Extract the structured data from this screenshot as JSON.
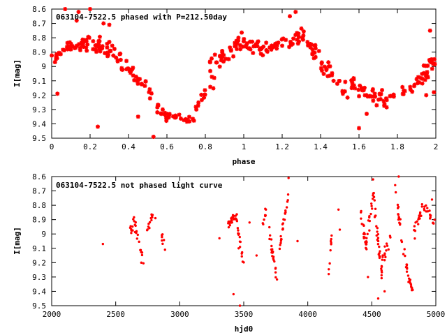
{
  "colors": {
    "points": "#ff0000",
    "axes": "#000000",
    "background": "#ffffff"
  },
  "chart_data": [
    {
      "type": "scatter",
      "title": "063104-7522.5 phased with P=212.50day",
      "xlabel": "phase",
      "ylabel": "I[mag]",
      "xlim": [
        0,
        2
      ],
      "ylim": [
        8.6,
        9.5
      ],
      "y_inverted": true,
      "grid": false,
      "marker": "asterisk",
      "x_ticks": [
        "0",
        "0.2",
        "0.4",
        "0.6",
        "0.8",
        "1",
        "1.2",
        "1.4",
        "1.6",
        "1.8",
        "2"
      ],
      "y_ticks": [
        "8.6",
        "8.7",
        "8.8",
        "8.9",
        "9",
        "9.1",
        "9.2",
        "9.3",
        "9.4",
        "9.5"
      ],
      "segments": [
        {
          "x": [
            0.0,
            0.1
          ],
          "y": [
            8.95,
            8.86
          ],
          "spread": 0.06,
          "n": 22
        },
        {
          "x": [
            0.1,
            0.2
          ],
          "y": [
            8.86,
            8.82
          ],
          "spread": 0.08,
          "n": 22
        },
        {
          "x": [
            0.2,
            0.33
          ],
          "y": [
            8.82,
            8.93
          ],
          "spread": 0.09,
          "n": 30
        },
        {
          "x": [
            0.33,
            0.45
          ],
          "y": [
            8.93,
            9.08
          ],
          "spread": 0.07,
          "n": 24
        },
        {
          "x": [
            0.45,
            0.6
          ],
          "y": [
            9.08,
            9.35
          ],
          "spread": 0.06,
          "n": 22
        },
        {
          "x": [
            0.6,
            0.75
          ],
          "y": [
            9.35,
            9.38
          ],
          "spread": 0.03,
          "n": 18
        },
        {
          "x": [
            0.75,
            0.85
          ],
          "y": [
            9.28,
            9.08
          ],
          "spread": 0.06,
          "n": 14
        },
        {
          "x": [
            0.82,
            1.0
          ],
          "y": [
            9.0,
            8.82
          ],
          "spread": 0.08,
          "n": 36
        },
        {
          "x": [
            1.0,
            1.1
          ],
          "y": [
            8.82,
            8.88
          ],
          "spread": 0.06,
          "n": 24
        },
        {
          "x": [
            1.1,
            1.3
          ],
          "y": [
            8.9,
            8.78
          ],
          "spread": 0.07,
          "n": 34
        },
        {
          "x": [
            1.3,
            1.4
          ],
          "y": [
            8.8,
            8.95
          ],
          "spread": 0.07,
          "n": 20
        },
        {
          "x": [
            1.4,
            1.55
          ],
          "y": [
            8.98,
            9.18
          ],
          "spread": 0.07,
          "n": 24
        },
        {
          "x": [
            1.55,
            1.75
          ],
          "y": [
            9.12,
            9.25
          ],
          "spread": 0.07,
          "n": 40
        },
        {
          "x": [
            1.75,
            1.9
          ],
          "y": [
            9.2,
            9.15
          ],
          "spread": 0.04,
          "n": 14
        },
        {
          "x": [
            1.9,
            2.0
          ],
          "y": [
            9.12,
            8.95
          ],
          "spread": 0.08,
          "n": 28
        }
      ],
      "points": [
        {
          "x": 0.07,
          "y": 8.6
        },
        {
          "x": 0.14,
          "y": 8.62
        },
        {
          "x": 0.24,
          "y": 9.42
        },
        {
          "x": 0.2,
          "y": 8.6
        },
        {
          "x": 0.53,
          "y": 9.49
        },
        {
          "x": 0.13,
          "y": 8.68
        },
        {
          "x": 0.27,
          "y": 8.7
        },
        {
          "x": 0.3,
          "y": 8.71
        },
        {
          "x": 0.03,
          "y": 9.19
        },
        {
          "x": 1.27,
          "y": 8.62
        },
        {
          "x": 1.24,
          "y": 8.65
        },
        {
          "x": 1.6,
          "y": 9.43
        },
        {
          "x": 1.64,
          "y": 9.33
        },
        {
          "x": 1.97,
          "y": 8.75
        },
        {
          "x": 1.99,
          "y": 9.18
        },
        {
          "x": 1.95,
          "y": 9.2
        },
        {
          "x": 0.45,
          "y": 9.35
        },
        {
          "x": 0.55,
          "y": 9.32
        }
      ]
    },
    {
      "type": "scatter",
      "title": "063104-7522.5 not phased light curve",
      "xlabel": "hjd0",
      "ylabel": "I[mag]",
      "xlim": [
        2000,
        5000
      ],
      "ylim": [
        8.6,
        9.5
      ],
      "y_inverted": true,
      "grid": false,
      "marker": "dot",
      "x_ticks": [
        "2000",
        "2500",
        "3000",
        "3500",
        "4000",
        "4500",
        "5000"
      ],
      "y_ticks": [
        "8.6",
        "8.7",
        "8.8",
        "8.9",
        "9",
        "9.1",
        "9.2",
        "9.3",
        "9.4",
        "9.5"
      ],
      "segments": [
        {
          "x": [
            2610,
            2650
          ],
          "y": [
            8.98,
            8.9
          ],
          "spread": 0.05,
          "n": 10
        },
        {
          "x": [
            2650,
            2720
          ],
          "y": [
            8.95,
            9.2
          ],
          "spread": 0.06,
          "n": 16
        },
        {
          "x": [
            2730,
            2790
          ],
          "y": [
            8.98,
            8.88
          ],
          "spread": 0.05,
          "n": 12
        },
        {
          "x": [
            2860,
            2890
          ],
          "y": [
            9.02,
            9.12
          ],
          "spread": 0.04,
          "n": 8
        },
        {
          "x": [
            3370,
            3450
          ],
          "y": [
            8.93,
            8.88
          ],
          "spread": 0.04,
          "n": 30
        },
        {
          "x": [
            3450,
            3500
          ],
          "y": [
            8.95,
            9.2
          ],
          "spread": 0.06,
          "n": 14
        },
        {
          "x": [
            3640,
            3680
          ],
          "y": [
            8.95,
            8.82
          ],
          "spread": 0.04,
          "n": 8
        },
        {
          "x": [
            3700,
            3760
          ],
          "y": [
            9.0,
            9.3
          ],
          "spread": 0.06,
          "n": 22
        },
        {
          "x": [
            3780,
            3850
          ],
          "y": [
            9.1,
            8.72
          ],
          "spread": 0.05,
          "n": 22
        },
        {
          "x": [
            4160,
            4190
          ],
          "y": [
            9.3,
            9.0
          ],
          "spread": 0.06,
          "n": 8
        },
        {
          "x": [
            4410,
            4450
          ],
          "y": [
            8.85,
            9.05
          ],
          "spread": 0.06,
          "n": 14
        },
        {
          "x": [
            4450,
            4520
          ],
          "y": [
            9.1,
            8.7
          ],
          "spread": 0.07,
          "n": 22
        },
        {
          "x": [
            4520,
            4580
          ],
          "y": [
            8.8,
            9.3
          ],
          "spread": 0.08,
          "n": 28
        },
        {
          "x": [
            4580,
            4650
          ],
          "y": [
            9.2,
            9.0
          ],
          "spread": 0.07,
          "n": 14
        },
        {
          "x": [
            4680,
            4730
          ],
          "y": [
            8.65,
            9.0
          ],
          "spread": 0.06,
          "n": 14
        },
        {
          "x": [
            4730,
            4780
          ],
          "y": [
            9.05,
            9.25
          ],
          "spread": 0.05,
          "n": 12
        },
        {
          "x": [
            4780,
            4820
          ],
          "y": [
            9.3,
            9.4
          ],
          "spread": 0.04,
          "n": 14
        },
        {
          "x": [
            4830,
            4900
          ],
          "y": [
            9.0,
            8.78
          ],
          "spread": 0.06,
          "n": 18
        },
        {
          "x": [
            4900,
            5000
          ],
          "y": [
            8.8,
            8.95
          ],
          "spread": 0.05,
          "n": 16
        }
      ],
      "points": [
        {
          "x": 2400,
          "y": 9.07
        },
        {
          "x": 2700,
          "y": 9.2
        },
        {
          "x": 3420,
          "y": 9.42
        },
        {
          "x": 3470,
          "y": 9.5
        },
        {
          "x": 3545,
          "y": 8.92
        },
        {
          "x": 3850,
          "y": 8.61
        },
        {
          "x": 3920,
          "y": 9.05
        },
        {
          "x": 3310,
          "y": 9.03
        },
        {
          "x": 3600,
          "y": 9.15
        },
        {
          "x": 4240,
          "y": 8.83
        },
        {
          "x": 4250,
          "y": 8.97
        },
        {
          "x": 4180,
          "y": 9.05
        },
        {
          "x": 4510,
          "y": 8.62
        },
        {
          "x": 4710,
          "y": 8.6
        },
        {
          "x": 4970,
          "y": 8.76
        },
        {
          "x": 4550,
          "y": 9.45
        },
        {
          "x": 4600,
          "y": 9.4
        },
        {
          "x": 3460,
          "y": 9.1
        },
        {
          "x": 2810,
          "y": 8.89
        },
        {
          "x": 4470,
          "y": 9.3
        }
      ]
    }
  ]
}
